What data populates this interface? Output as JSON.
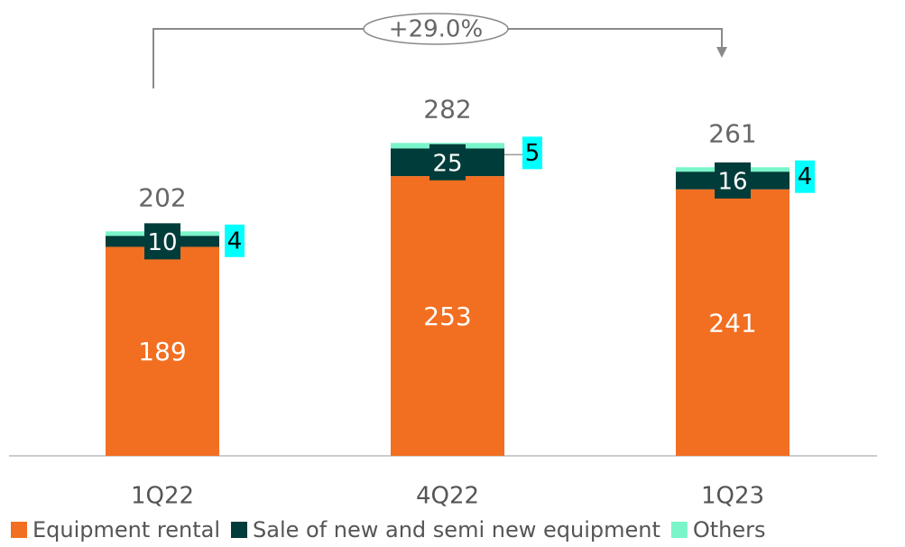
{
  "chart_data": {
    "type": "stacked_bar",
    "annotation": "+29.0%",
    "categories": [
      "1Q22",
      "4Q22",
      "1Q23"
    ],
    "series": [
      {
        "name": "Equipment rental",
        "color": "#f26f21",
        "values": [
          189,
          253,
          241
        ]
      },
      {
        "name": "Sale of new and semi new equipment",
        "color": "#003c3a",
        "values": [
          10,
          25,
          16
        ]
      },
      {
        "name": "Others",
        "color": "#7af5c9",
        "values": [
          4,
          5,
          4
        ]
      }
    ],
    "totals": [
      202,
      282,
      261
    ],
    "legend": "bottom"
  }
}
